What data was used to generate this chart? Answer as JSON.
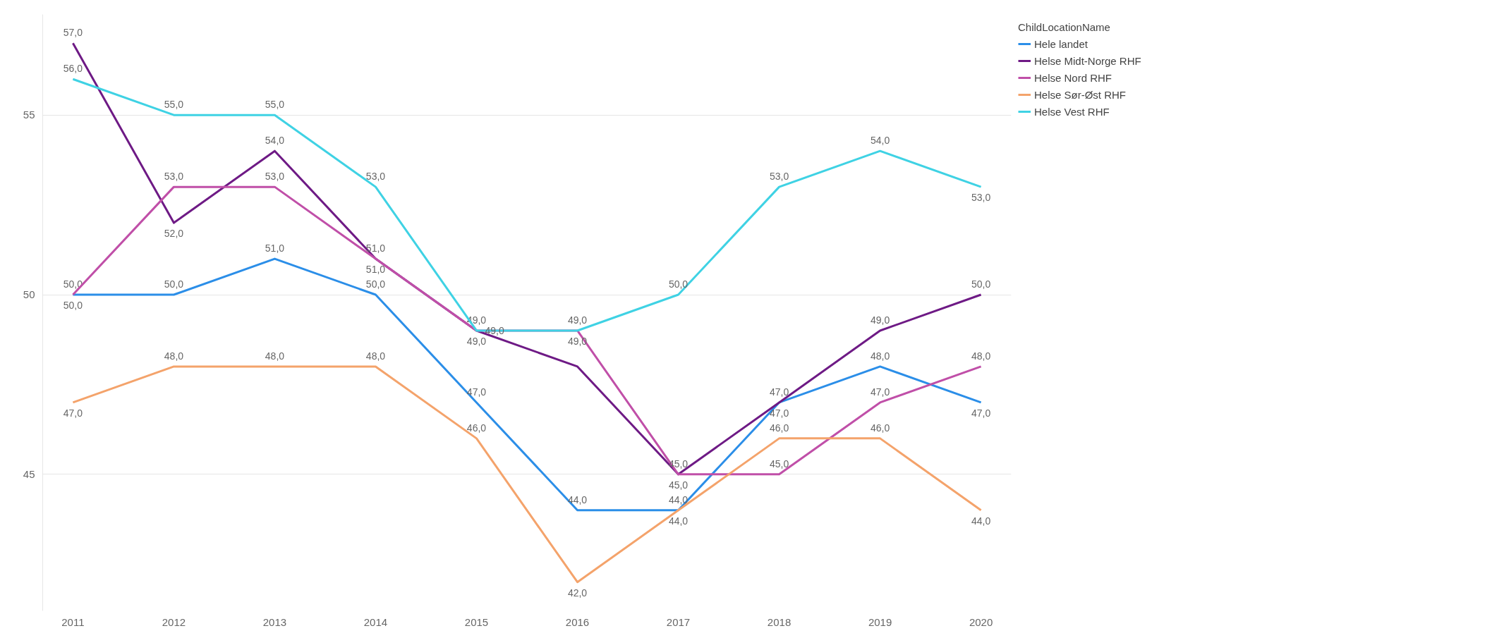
{
  "chart_data": {
    "type": "line",
    "legend_title": "ChildLocationName",
    "legend": "top right",
    "grid": "y",
    "marker": "none",
    "line_style": "solid",
    "categories": [
      "2011",
      "2012",
      "2013",
      "2014",
      "2015",
      "2016",
      "2017",
      "2018",
      "2019",
      "2020"
    ],
    "ylim": [
      41.2,
      57.8
    ],
    "yticks": [
      45,
      50,
      55
    ],
    "series": [
      {
        "name": "Hele landet",
        "color": "#2b8ee8",
        "values": [
          50,
          50,
          51,
          50,
          47,
          44,
          44,
          47,
          48,
          47
        ],
        "value_labels": [
          "50,0",
          "50,0",
          "51,0",
          "50,0",
          "47,0",
          "44,0",
          "44,0",
          "47,0",
          "48,0",
          "47,0"
        ]
      },
      {
        "name": "Helse Midt-Norge RHF",
        "color": "#6e1a85",
        "values": [
          57,
          52,
          54,
          51,
          49,
          48,
          45,
          47,
          49,
          50
        ],
        "value_labels": [
          "57,0",
          "52,0",
          "54,0",
          "51,0",
          "49,0",
          null,
          "45,0",
          "47,0",
          "49,0",
          "50,0"
        ]
      },
      {
        "name": "Helse Nord RHF",
        "color": "#c04fa8",
        "values": [
          50,
          53,
          53,
          51,
          49,
          49,
          45,
          45,
          47,
          48
        ],
        "value_labels": [
          "50,0",
          "53,0",
          "53,0",
          "51,0",
          "49,0",
          "49,0",
          "45,0",
          "45,0",
          "47,0",
          "48,0"
        ]
      },
      {
        "name": "Helse Sør-Øst RHF",
        "color": "#f4a36b",
        "values": [
          47,
          48,
          48,
          48,
          46,
          42,
          44,
          46,
          46,
          44
        ],
        "value_labels": [
          "47,0",
          "48,0",
          "48,0",
          "48,0",
          "46,0",
          "42,0",
          "44,0",
          "46,0",
          "46,0",
          "44,0"
        ]
      },
      {
        "name": "Helse Vest RHF",
        "color": "#3fd2e4",
        "values": [
          56,
          55,
          55,
          53,
          49,
          49,
          50,
          53,
          54,
          53
        ],
        "value_labels": [
          "56,0",
          "55,0",
          "55,0",
          "53,0",
          "49,0",
          "49,0",
          "50,0",
          "53,0",
          "54,0",
          "53,0"
        ]
      }
    ]
  }
}
